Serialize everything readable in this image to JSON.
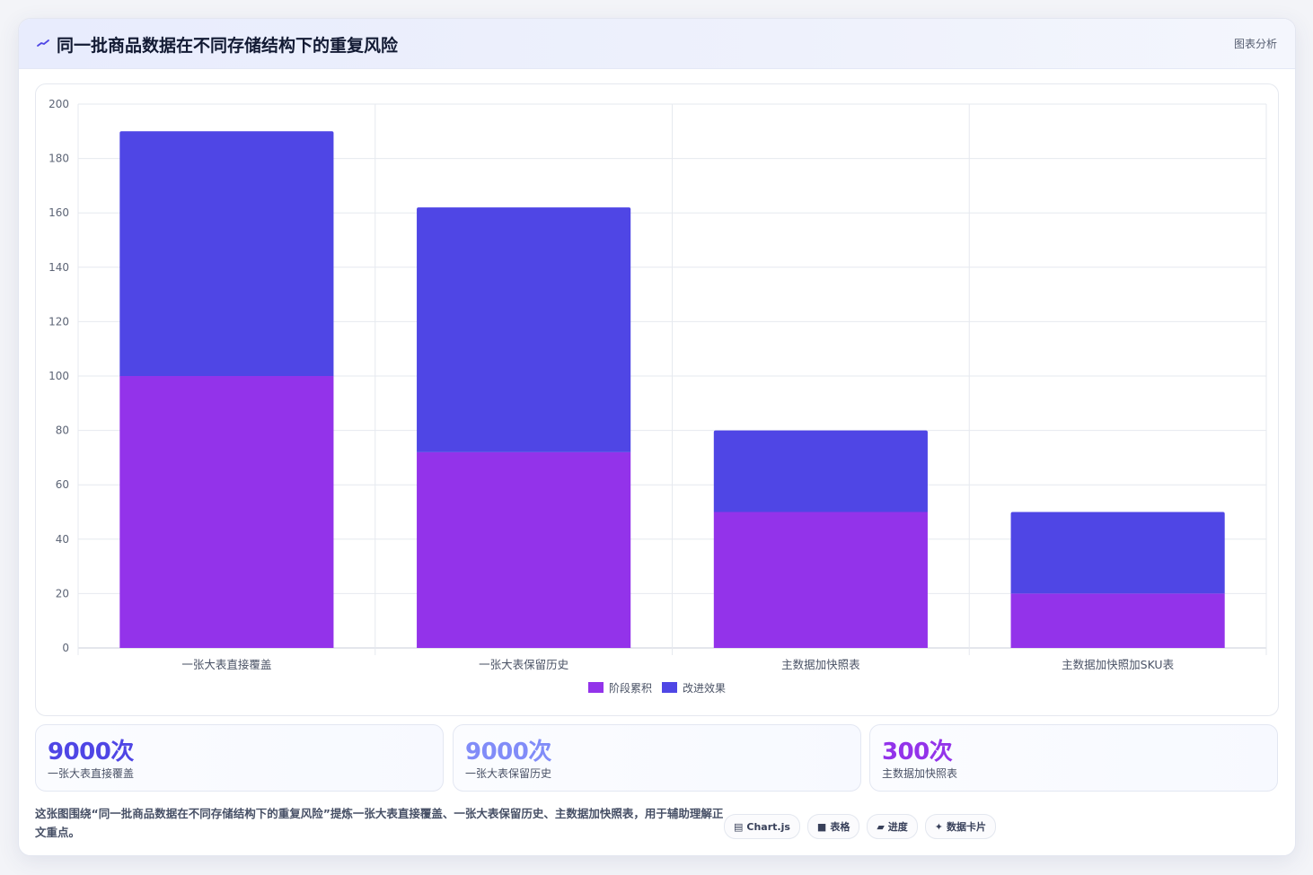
{
  "header": {
    "title": "同一批商品数据在不同存储结构下的重复风险",
    "right_label": "图表分析",
    "icon": "trend-line-icon"
  },
  "chart_data": {
    "type": "bar",
    "stacked": true,
    "categories": [
      "一张大表直接覆盖",
      "一张大表保留历史",
      "主数据加快照表",
      "主数据加快照加SKU表"
    ],
    "series": [
      {
        "name": "阶段累积",
        "values": [
          100,
          72,
          50,
          20
        ],
        "color": "#9333ea"
      },
      {
        "name": "改进效果",
        "values": [
          90,
          90,
          30,
          30
        ],
        "color": "#4f46e5"
      }
    ],
    "ylim": [
      0,
      200
    ],
    "yticks": [
      0,
      20,
      40,
      60,
      80,
      100,
      120,
      140,
      160,
      180,
      200
    ],
    "grid": true,
    "legend": "bottom"
  },
  "stats": [
    {
      "value": "9000次",
      "label": "一张大表直接覆盖",
      "color": "#4f46e5"
    },
    {
      "value": "9000次",
      "label": "一张大表保留历史",
      "color": "#818cf8"
    },
    {
      "value": "300次",
      "label": "主数据加快照表",
      "color": "#9333ea"
    }
  ],
  "footer": {
    "text": "这张图围绕“同一批商品数据在不同存储结构下的重复风险”提炼一张大表直接覆盖、一张大表保留历史、主数据加快照表，用于辅助理解正文重点。",
    "chips": [
      {
        "icon": "▤",
        "label": "Chart.js"
      },
      {
        "icon": "■",
        "label": "表格"
      },
      {
        "icon": "▰",
        "label": "进度"
      },
      {
        "icon": "✦",
        "label": "数据卡片"
      }
    ]
  }
}
